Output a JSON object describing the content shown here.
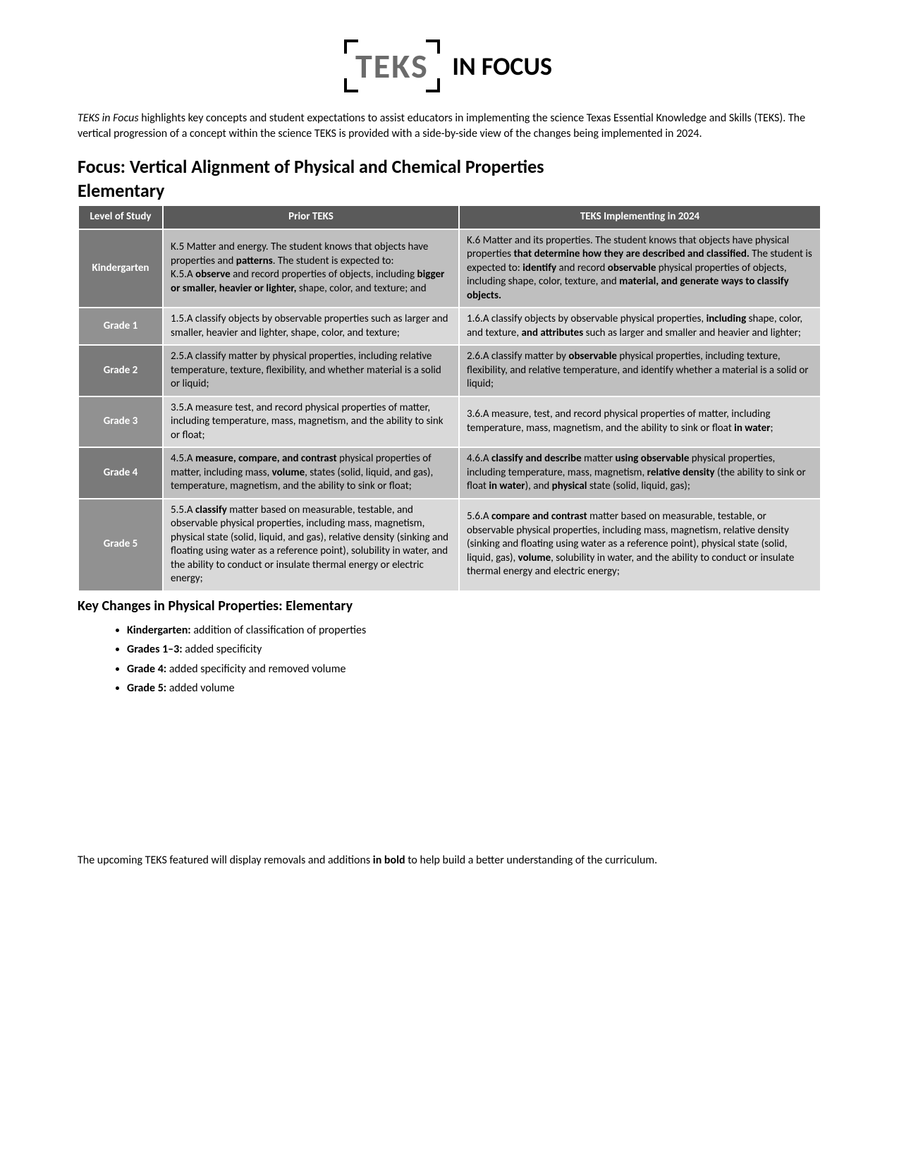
{
  "logo": {
    "teks": "TEKS",
    "infocus": "IN FOCUS"
  },
  "intro": {
    "prefix_italic": "TEKS in Focus",
    "rest": " highlights key concepts and student expectations to assist educators in implementing the science Texas Essential Knowledge and Skills (TEKS). The vertical progression of a concept within the science TEKS is provided with a side-by-side view of the changes being implemented in 2024."
  },
  "focus_title": "Focus: Vertical Alignment of Physical and Chemical Properties",
  "section_sub": "Elementary",
  "table": {
    "headers": {
      "level": "Level of Study",
      "prior": "Prior TEKS",
      "new": "TEKS Implementing in 2024"
    },
    "rows": [
      {
        "level": "Kindergarten",
        "prior_html": "K.5 Matter and energy. The student knows that objects have properties and <b>patterns</b>. The student is expected to:<br>K.5.A <b>observe</b> and record properties of objects, including <b>bigger or smaller, heavier or lighter,</b> shape, color, and texture; and",
        "new_html": "K.6 Matter and its properties. The student knows that objects have physical properties <b>that determine how they are described and classified.</b> The student is expected to: <b>identify</b> and record <b>observable</b> physical properties of objects, including shape, color, texture, and <b>material, and generate ways to classify objects.</b>"
      },
      {
        "level": "Grade 1",
        "prior_html": "1.5.A classify objects by observable properties such as larger and smaller, heavier and lighter, shape, color, and texture;",
        "new_html": "1.6.A classify objects by observable physical properties, <b>including</b> shape, color, and texture, <b>and attributes</b> such as larger and smaller and heavier and lighter;"
      },
      {
        "level": "Grade 2",
        "prior_html": "2.5.A classify matter by physical properties, including relative temperature, texture, flexibility, and whether material is a solid or liquid;",
        "new_html": "2.6.A classify matter by <b>observable</b> physical properties, including texture, flexibility, and relative temperature, and identify whether a material is a solid or liquid;"
      },
      {
        "level": "Grade 3",
        "prior_html": "3.5.A measure test, and record physical properties of matter, including temperature, mass, magnetism, and the ability to sink or float;",
        "new_html": "3.6.A measure, test, and record physical properties of matter, including temperature, mass, magnetism, and the ability to sink or float <b>in water</b>;"
      },
      {
        "level": "Grade 4",
        "prior_html": "4.5.A <b>measure, compare, and contrast</b> physical properties of matter, including mass, <b>volume</b>, states (solid, liquid, and gas), temperature, magnetism, and the ability to sink or float;",
        "new_html": "4.6.A <b>classify and describe</b> matter <b>using observable</b> physical properties, including temperature, mass, magnetism, <b>relative density</b> (the ability to sink or float <b>in water</b>), and <b>physical</b> state (solid, liquid, gas);"
      },
      {
        "level": "Grade 5",
        "prior_html": "5.5.A <b>classify</b> matter based on measurable, testable, and observable physical properties, including mass, magnetism, physical state (solid, liquid, and gas), relative density (sinking and floating using water as a reference point), solubility in water, and the ability to conduct or insulate thermal energy or electric energy;",
        "new_html": "5.6.A <b>compare and contrast</b> matter based on measurable, testable, or observable physical properties, including mass, magnetism, relative density (sinking and floating using water as a reference point), physical state (solid, liquid, gas), <b>volume</b>, solubility in water, and the ability to conduct or insulate thermal energy and electric energy;"
      }
    ]
  },
  "key_changes_title": "Key Changes in Physical Properties: Elementary",
  "key_changes": [
    {
      "label": "Kindergarten:",
      "text": " addition of classification of properties"
    },
    {
      "label": "Grades 1–3:",
      "text": " added specificity"
    },
    {
      "label": "Grade 4:",
      "text": " added specificity and removed volume"
    },
    {
      "label": "Grade 5:",
      "text": " added volume"
    }
  ],
  "footer": {
    "pre": "The upcoming TEKS featured will display removals and additions ",
    "bold": "in bold",
    "post": " to help build a better understanding of the curriculum."
  },
  "colors": {
    "header_bg": "#5a5a5a",
    "row_odd_bg": "#bfbfbf",
    "row_odd_level_bg": "#7a7a7a",
    "row_even_bg": "#d9d9d9",
    "row_even_level_bg": "#919191",
    "text": "#000000",
    "header_text": "#ffffff"
  }
}
